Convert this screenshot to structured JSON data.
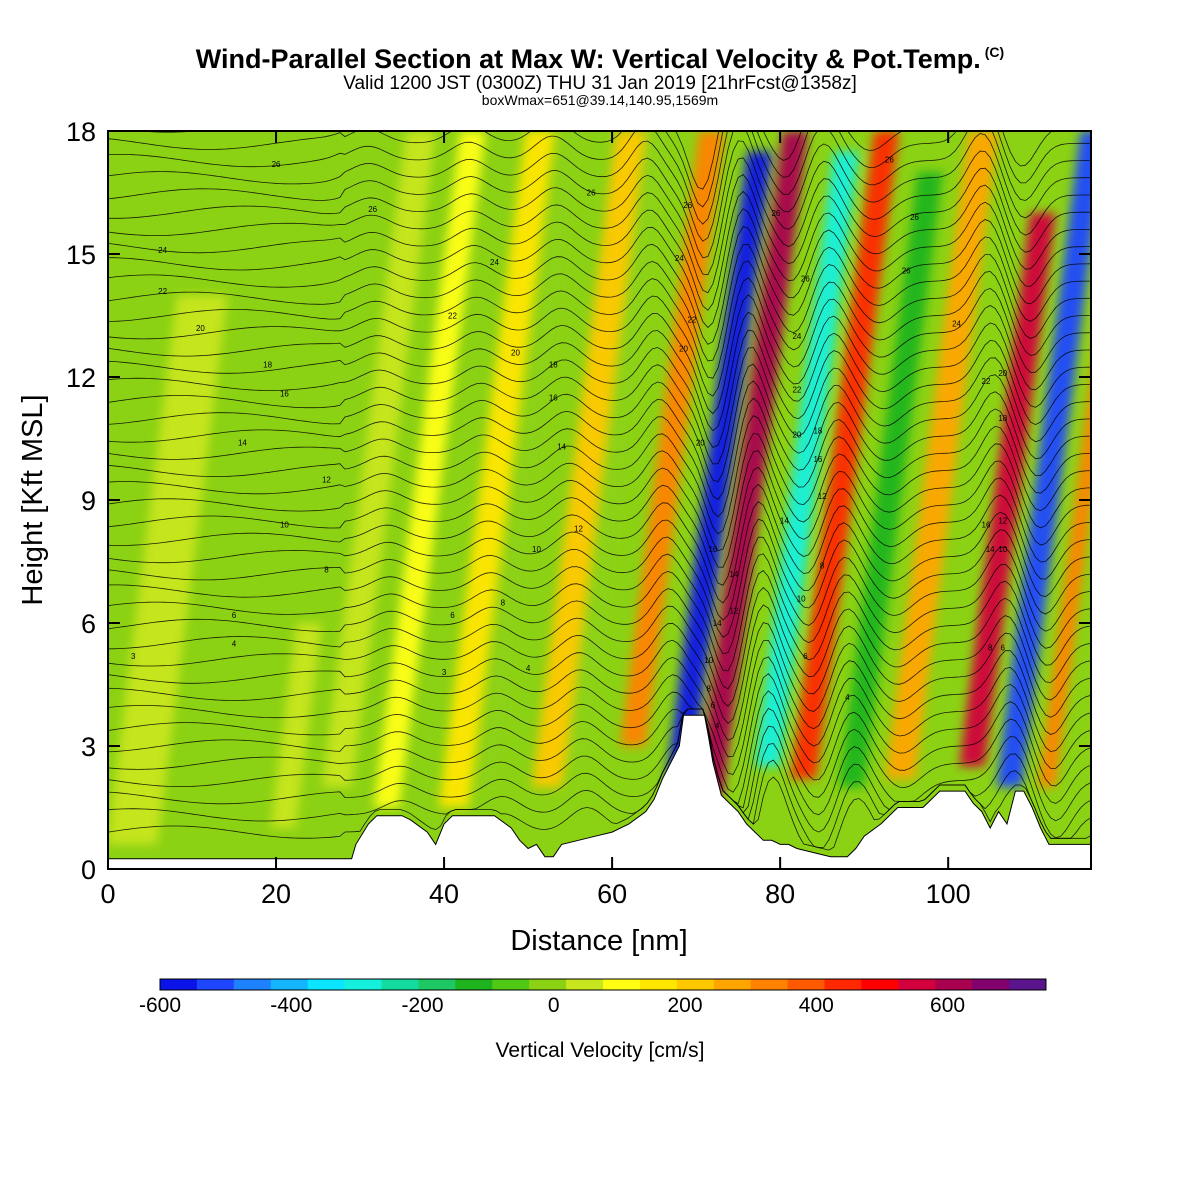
{
  "header": {
    "title": "Wind-Parallel Section at Max W: Vertical Velocity & Pot.Temp.",
    "copyright": "(C)",
    "valid_line": "Valid 1200 JST (0300Z) THU 31 Jan 2019 [21hrFcst@1358z]",
    "box_line": "boxWmax=651@39.14,140.95,1569m"
  },
  "chart_data": {
    "type": "heatmap",
    "title": "Wind-Parallel Section at Max W: Vertical Velocity & Pot.Temp.",
    "xlabel": "Distance [nm]",
    "ylabel": "Height [Kft MSL]",
    "xlim": [
      0,
      117
    ],
    "ylim": [
      0,
      18
    ],
    "x_ticks": [
      0,
      20,
      40,
      60,
      80,
      100
    ],
    "y_ticks": [
      0,
      3,
      6,
      9,
      12,
      15,
      18
    ],
    "grid": false,
    "colorbar": {
      "label": "Vertical Velocity [cm/s]",
      "orientation": "horizontal",
      "min": -600,
      "max": 750,
      "step": 50,
      "tick_values": [
        -600,
        -400,
        -200,
        0,
        200,
        400,
        600
      ],
      "colors": [
        "#0a14e8",
        "#1e46ff",
        "#1e82ff",
        "#14b4ff",
        "#0ae6ff",
        "#14f0dc",
        "#14dca0",
        "#1ec864",
        "#1eb41e",
        "#50c814",
        "#8cd214",
        "#c8e61e",
        "#ffff14",
        "#ffe600",
        "#ffc800",
        "#ffa500",
        "#ff8200",
        "#ff5a00",
        "#ff2800",
        "#ff0000",
        "#d2003c",
        "#aa0050",
        "#82006e",
        "#5a148c"
      ]
    },
    "vertical_velocity_bands": [
      {
        "x": 6,
        "top": 14.0,
        "bottom": 0.6,
        "width": 6,
        "value": -10
      },
      {
        "x": 22,
        "top": 6.0,
        "bottom": 1.0,
        "width": 3,
        "value": -30
      },
      {
        "x": 31,
        "top": 18.0,
        "bottom": 2.0,
        "width": 3.5,
        "value": -40
      },
      {
        "x": 37,
        "top": 18.0,
        "bottom": 1.5,
        "width": 3,
        "value": 40
      },
      {
        "x": 45,
        "top": 18.0,
        "bottom": 1.5,
        "width": 3.5,
        "value": 60
      },
      {
        "x": 49,
        "top": 18.0,
        "bottom": 2.0,
        "width": 2.5,
        "value": -60
      },
      {
        "x": 56,
        "top": 18.0,
        "bottom": 2.0,
        "width": 3.5,
        "value": 120
      },
      {
        "x": 59.5,
        "top": 18.0,
        "bottom": 2.5,
        "width": 2.5,
        "value": -90
      },
      {
        "x": 66,
        "top": 18.0,
        "bottom": 3.0,
        "width": 3,
        "value": 200
      },
      {
        "x": 71.5,
        "top": 17.5,
        "bottom": 2.0,
        "width": 3,
        "value": -580
      },
      {
        "x": 75.5,
        "top": 18.0,
        "bottom": 1.8,
        "width": 3,
        "value": 480
      },
      {
        "x": 82,
        "top": 17.5,
        "bottom": 2.5,
        "width": 3,
        "value": -330
      },
      {
        "x": 86.5,
        "top": 18.0,
        "bottom": 2.2,
        "width": 3,
        "value": 330
      },
      {
        "x": 92,
        "top": 17.0,
        "bottom": 2.0,
        "width": 3,
        "value": -200
      },
      {
        "x": 98,
        "top": 18.0,
        "bottom": 2.2,
        "width": 3.5,
        "value": 150
      },
      {
        "x": 106,
        "top": 16.0,
        "bottom": 2.5,
        "width": 3,
        "value": 440
      },
      {
        "x": 111,
        "top": 18.0,
        "bottom": 2.0,
        "width": 3,
        "value": -520
      },
      {
        "x": 115.5,
        "top": 18.0,
        "bottom": 2.0,
        "width": 2,
        "value": 230
      }
    ],
    "terrain": {
      "x": [
        0,
        29,
        29.5,
        31,
        32,
        35,
        36,
        38,
        39,
        40,
        41,
        46,
        48,
        49,
        50,
        51,
        52,
        53,
        54,
        56,
        58,
        60,
        62,
        64,
        65,
        66,
        67,
        68,
        68.5,
        71,
        71.5,
        72,
        73,
        75,
        76,
        77,
        78,
        79,
        80,
        81,
        82,
        84,
        86,
        87,
        88,
        89,
        90,
        92,
        94,
        96,
        97,
        99,
        100,
        102,
        103,
        104,
        105,
        106,
        107,
        108,
        109,
        110,
        111,
        112,
        117
      ],
      "y": [
        0.25,
        0.25,
        0.6,
        1.1,
        1.3,
        1.3,
        1.2,
        0.9,
        0.6,
        1.1,
        1.3,
        1.3,
        1.0,
        0.7,
        0.5,
        0.6,
        0.3,
        0.3,
        0.6,
        0.7,
        0.8,
        0.9,
        1.1,
        1.4,
        1.7,
        2.2,
        2.6,
        3.0,
        3.75,
        3.75,
        3.2,
        2.6,
        1.8,
        1.4,
        1.1,
        0.9,
        0.7,
        0.7,
        0.6,
        0.6,
        0.5,
        0.4,
        0.3,
        0.3,
        0.3,
        0.5,
        0.8,
        1.1,
        1.5,
        1.5,
        1.5,
        1.9,
        1.9,
        1.9,
        1.6,
        1.4,
        1.0,
        1.4,
        1.1,
        1.9,
        1.9,
        1.5,
        1.0,
        0.6,
        0.6
      ]
    },
    "theta_contour_labels": [
      {
        "x": 3,
        "y": 5.2,
        "text": "3"
      },
      {
        "x": 15,
        "y": 5.5,
        "text": "4"
      },
      {
        "x": 15,
        "y": 6.2,
        "text": "6"
      },
      {
        "x": 26,
        "y": 7.3,
        "text": "8"
      },
      {
        "x": 21,
        "y": 8.4,
        "text": "10"
      },
      {
        "x": 26,
        "y": 9.5,
        "text": "12"
      },
      {
        "x": 16,
        "y": 10.4,
        "text": "14"
      },
      {
        "x": 21,
        "y": 11.6,
        "text": "16"
      },
      {
        "x": 19,
        "y": 12.3,
        "text": "18"
      },
      {
        "x": 11,
        "y": 13.2,
        "text": "20"
      },
      {
        "x": 6.5,
        "y": 14.1,
        "text": "22"
      },
      {
        "x": 6.5,
        "y": 15.1,
        "text": "24"
      },
      {
        "x": 20,
        "y": 17.2,
        "text": "26"
      },
      {
        "x": 31.5,
        "y": 16.1,
        "text": "26"
      },
      {
        "x": 40,
        "y": 4.8,
        "text": "3"
      },
      {
        "x": 41,
        "y": 6.2,
        "text": "6"
      },
      {
        "x": 47,
        "y": 6.5,
        "text": "8"
      },
      {
        "x": 50,
        "y": 4.9,
        "text": "4"
      },
      {
        "x": 51,
        "y": 7.8,
        "text": "10"
      },
      {
        "x": 56,
        "y": 8.3,
        "text": "12"
      },
      {
        "x": 54,
        "y": 10.3,
        "text": "14"
      },
      {
        "x": 53,
        "y": 11.5,
        "text": "16"
      },
      {
        "x": 53,
        "y": 12.3,
        "text": "18"
      },
      {
        "x": 48.5,
        "y": 12.6,
        "text": "20"
      },
      {
        "x": 41,
        "y": 13.5,
        "text": "22"
      },
      {
        "x": 46,
        "y": 14.8,
        "text": "24"
      },
      {
        "x": 57.5,
        "y": 16.5,
        "text": "26"
      },
      {
        "x": 68,
        "y": 14.9,
        "text": "24"
      },
      {
        "x": 69,
        "y": 16.2,
        "text": "26"
      },
      {
        "x": 69.5,
        "y": 13.4,
        "text": "22"
      },
      {
        "x": 68.5,
        "y": 12.7,
        "text": "20"
      },
      {
        "x": 70.5,
        "y": 10.4,
        "text": "20"
      },
      {
        "x": 72,
        "y": 7.8,
        "text": "16"
      },
      {
        "x": 74.5,
        "y": 7.2,
        "text": "14"
      },
      {
        "x": 74.5,
        "y": 6.3,
        "text": "12"
      },
      {
        "x": 72.5,
        "y": 6.0,
        "text": "14"
      },
      {
        "x": 71.5,
        "y": 5.1,
        "text": "10"
      },
      {
        "x": 71.5,
        "y": 4.4,
        "text": "8"
      },
      {
        "x": 72,
        "y": 4.0,
        "text": "6"
      },
      {
        "x": 72.5,
        "y": 3.5,
        "text": "4"
      },
      {
        "x": 79.5,
        "y": 16.0,
        "text": "26"
      },
      {
        "x": 83,
        "y": 14.4,
        "text": "26"
      },
      {
        "x": 82,
        "y": 13.0,
        "text": "24"
      },
      {
        "x": 82,
        "y": 11.7,
        "text": "22"
      },
      {
        "x": 82,
        "y": 10.6,
        "text": "20"
      },
      {
        "x": 84.5,
        "y": 10.7,
        "text": "18"
      },
      {
        "x": 84.5,
        "y": 10.0,
        "text": "16"
      },
      {
        "x": 85,
        "y": 9.1,
        "text": "12"
      },
      {
        "x": 80.5,
        "y": 8.5,
        "text": "14"
      },
      {
        "x": 82.5,
        "y": 6.6,
        "text": "10"
      },
      {
        "x": 85,
        "y": 7.4,
        "text": "8"
      },
      {
        "x": 83,
        "y": 5.2,
        "text": "6"
      },
      {
        "x": 88,
        "y": 4.2,
        "text": "4"
      },
      {
        "x": 93,
        "y": 17.3,
        "text": "26"
      },
      {
        "x": 96,
        "y": 15.9,
        "text": "26"
      },
      {
        "x": 95,
        "y": 14.6,
        "text": "26"
      },
      {
        "x": 101,
        "y": 13.3,
        "text": "24"
      },
      {
        "x": 104.5,
        "y": 11.9,
        "text": "22"
      },
      {
        "x": 106.5,
        "y": 12.1,
        "text": "20"
      },
      {
        "x": 106.5,
        "y": 11.0,
        "text": "18"
      },
      {
        "x": 104.5,
        "y": 8.4,
        "text": "16"
      },
      {
        "x": 106.5,
        "y": 8.5,
        "text": "12"
      },
      {
        "x": 105,
        "y": 7.8,
        "text": "14"
      },
      {
        "x": 106.5,
        "y": 7.8,
        "text": "10"
      },
      {
        "x": 105,
        "y": 5.4,
        "text": "8"
      },
      {
        "x": 106.5,
        "y": 5.4,
        "text": "6"
      }
    ]
  }
}
